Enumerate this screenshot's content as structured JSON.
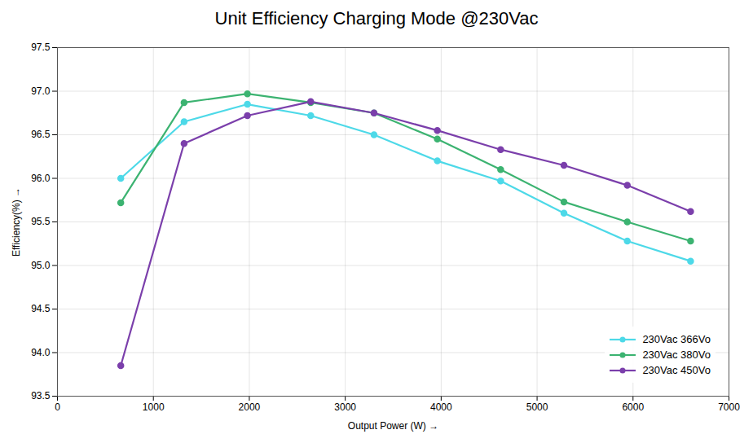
{
  "chart_data": {
    "type": "line",
    "title": "Unit Efficiency Charging Mode @230Vac",
    "xlabel": "Output Power (W)",
    "ylabel": "Efficiency(%)",
    "x": [
      660,
      1320,
      1980,
      2640,
      3300,
      3960,
      4620,
      5280,
      5940,
      6600
    ],
    "series": [
      {
        "name": "230Vac 366Vo",
        "color": "#4DD9E8",
        "values": [
          96.0,
          96.65,
          96.85,
          96.72,
          96.5,
          96.2,
          95.97,
          95.6,
          95.28,
          95.05
        ]
      },
      {
        "name": "230Vac 380Vo",
        "color": "#3CB371",
        "values": [
          95.72,
          96.87,
          96.97,
          96.87,
          96.75,
          96.45,
          96.1,
          95.73,
          95.5,
          95.28
        ]
      },
      {
        "name": "230Vac 450Vo",
        "color": "#7B3FAB",
        "values": [
          93.85,
          96.4,
          96.72,
          96.88,
          96.75,
          96.55,
          96.33,
          96.15,
          95.92,
          95.62
        ]
      }
    ],
    "xlim": [
      0,
      7000
    ],
    "ylim": [
      93.5,
      97.5
    ],
    "xticks": [
      0,
      1000,
      2000,
      3000,
      4000,
      5000,
      6000,
      7000
    ],
    "yticks": [
      93.5,
      {
        "value": 94,
        "label": "94.0"
      },
      94.5,
      {
        "value": 95,
        "label": "95.0"
      },
      95.5,
      {
        "value": 96,
        "label": "96.0"
      },
      96.5,
      {
        "value": 97,
        "label": "97.0"
      },
      97.5
    ],
    "grid": true,
    "legend": "lower right",
    "marker": "o"
  }
}
